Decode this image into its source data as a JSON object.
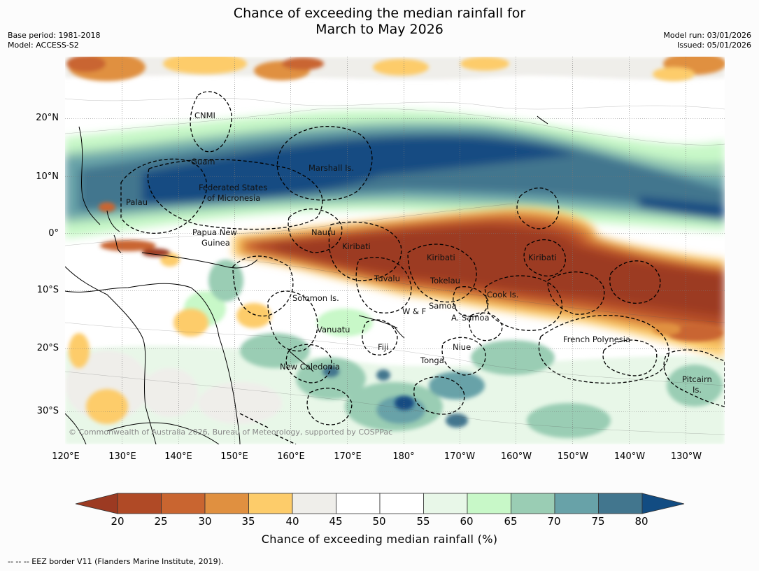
{
  "title_line1": "Chance of exceeding the median rainfall for",
  "title_line2": "March to May 2026",
  "meta_left": {
    "base_period": "Base period: 1981-2018",
    "model": "Model: ACCESS-S2"
  },
  "meta_right": {
    "model_run": "Model run: 03/01/2026",
    "issued": "Issued: 05/01/2026"
  },
  "axes": {
    "lat_labels": [
      "20°N",
      "10°N",
      "0°",
      "10°S",
      "20°S",
      "30°S"
    ],
    "lon_labels": [
      "120°E",
      "130°E",
      "140°E",
      "150°E",
      "160°E",
      "170°E",
      "180°",
      "170°W",
      "160°W",
      "150°W",
      "140°W",
      "130°W"
    ]
  },
  "regions": [
    {
      "name": "CNMI"
    },
    {
      "name": "Guam"
    },
    {
      "name": "Marshall Is."
    },
    {
      "name": "Federated States"
    },
    {
      "name": "of Micronesia"
    },
    {
      "name": "Palau"
    },
    {
      "name": "Papua New"
    },
    {
      "name": "Guinea"
    },
    {
      "name": "Nauru"
    },
    {
      "name": "Kiribati"
    },
    {
      "name": "Kiribati"
    },
    {
      "name": "Kiribati"
    },
    {
      "name": "Tuvalu"
    },
    {
      "name": "Tokelau"
    },
    {
      "name": "Cook Is."
    },
    {
      "name": "Solomon Is."
    },
    {
      "name": "Samoa"
    },
    {
      "name": "W & F"
    },
    {
      "name": "A. Samoa"
    },
    {
      "name": "Vanuatu"
    },
    {
      "name": "Fiji"
    },
    {
      "name": "Niue"
    },
    {
      "name": "French Polynesia"
    },
    {
      "name": "Tonga"
    },
    {
      "name": "New Caledonia"
    },
    {
      "name": "Pitcairn"
    },
    {
      "name": "Is."
    }
  ],
  "copyright": "© Commonwealth of Australia 2026, Bureau of Meteorology, supported by COSPPac",
  "colorbar": {
    "ticks": [
      "20",
      "25",
      "30",
      "35",
      "40",
      "45",
      "50",
      "55",
      "60",
      "65",
      "70",
      "75",
      "80"
    ],
    "title": "Chance of exceeding median rainfall (%)",
    "under_color": "#9c3a22",
    "over_color": "#124c82",
    "bins": [
      {
        "range": "20-25",
        "color": "#b04a26"
      },
      {
        "range": "25-30",
        "color": "#c96530"
      },
      {
        "range": "30-35",
        "color": "#e09040"
      },
      {
        "range": "35-40",
        "color": "#fdcc6a"
      },
      {
        "range": "40-45",
        "color": "#efeeea"
      },
      {
        "range": "45-50",
        "color": "#ffffff"
      },
      {
        "range": "50-55",
        "color": "#ffffff"
      },
      {
        "range": "55-60",
        "color": "#e8f7e8"
      },
      {
        "range": "60-65",
        "color": "#c8f8c8"
      },
      {
        "range": "65-70",
        "color": "#9acdb4"
      },
      {
        "range": "70-75",
        "color": "#68a2a8"
      },
      {
        "range": "75-80",
        "color": "#42768e"
      }
    ]
  },
  "footer": "--  --  -- EEZ border V11 (Flanders Marine Institute, 2019)."
}
